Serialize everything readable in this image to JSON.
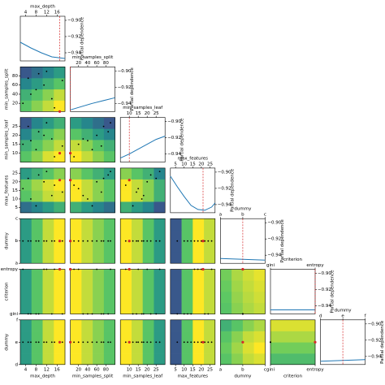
{
  "chart_data": {
    "type": "objective-matrix",
    "y_label": "Partial dependence",
    "ylim": [
      -0.95,
      -0.895
    ],
    "yticks": [
      {
        "value": -0.9,
        "label": "−0.90"
      },
      {
        "value": -0.92,
        "label": "−0.92"
      },
      {
        "value": -0.94,
        "label": "−0.94"
      }
    ],
    "line_color": "#1f77b4",
    "best_color": "#d62728",
    "dimensions": [
      {
        "name": "max_depth",
        "xlim": [
          2,
          19
        ],
        "xticks": [
          4,
          8,
          12,
          16
        ],
        "pd_x": [
          2,
          6,
          10,
          14,
          19
        ],
        "pd": [
          -0.927,
          -0.934,
          -0.94,
          -0.945,
          -0.947
        ]
      },
      {
        "name": "min_samples_split",
        "xlim": [
          2,
          100
        ],
        "xticks": [
          20,
          40,
          60,
          80
        ],
        "pd_x": [
          2,
          50,
          100
        ],
        "pd": [
          -0.948,
          -0.94,
          -0.933
        ]
      },
      {
        "name": "min_samples_leaf",
        "xlim": [
          5,
          30
        ],
        "xticks": [
          10,
          15,
          20,
          25
        ],
        "pd_x": [
          5,
          10,
          15,
          20,
          25,
          30
        ],
        "pd": [
          -0.945,
          -0.94,
          -0.934,
          -0.928,
          -0.922,
          -0.918
        ]
      },
      {
        "name": "max_features",
        "xlim": [
          2,
          28
        ],
        "xticks": [
          5,
          10,
          15,
          20,
          25
        ],
        "pd_x": [
          2,
          6,
          10,
          14,
          18,
          22,
          26,
          28
        ],
        "pd": [
          -0.905,
          -0.918,
          -0.93,
          -0.941,
          -0.946,
          -0.947,
          -0.943,
          -0.938
        ]
      },
      {
        "name": "dummy",
        "categories": [
          "a",
          "b",
          "c"
        ],
        "pd": [
          -0.944,
          -0.945,
          -0.946
        ]
      },
      {
        "name": "criterion",
        "categories": [
          "gini",
          "entropy"
        ],
        "pd": [
          -0.945,
          -0.945
        ]
      },
      {
        "name": "dummy",
        "categories": [
          "d",
          "e",
          "f"
        ],
        "pd": [
          -0.946,
          -0.945,
          -0.944
        ]
      }
    ],
    "best": [
      17,
      2,
      10,
      21,
      "b",
      "entropy",
      "e"
    ],
    "samples": [
      [
        5,
        75,
        25,
        22,
        "b",
        "gini",
        "e"
      ],
      [
        8,
        50,
        12,
        6,
        "b",
        "gini",
        "e"
      ],
      [
        11,
        60,
        20,
        20,
        "b",
        "entropy",
        "e"
      ],
      [
        14,
        30,
        18,
        12,
        "b",
        "gini",
        "e"
      ],
      [
        3,
        20,
        15,
        16,
        "b",
        "entropy",
        "e"
      ],
      [
        9,
        85,
        22,
        24,
        "b",
        "gini",
        "e"
      ],
      [
        15,
        10,
        8,
        18,
        "b",
        "entropy",
        "e"
      ],
      [
        6,
        40,
        17,
        10,
        "b",
        "gini",
        "e"
      ],
      [
        12,
        90,
        27,
        26,
        "b",
        "entropy",
        "e"
      ],
      [
        18,
        70,
        14,
        14,
        "b",
        "gini",
        "e"
      ]
    ],
    "fields": [
      [
        [
          -0.935,
          -0.94,
          -0.945,
          -0.95
        ],
        [
          -0.93,
          -0.935,
          -0.94,
          -0.945
        ],
        [
          -0.92,
          -0.925,
          -0.93,
          -0.935
        ],
        [
          -0.91,
          -0.915,
          -0.92,
          -0.925
        ]
      ],
      [
        [
          -0.935,
          -0.94,
          -0.947,
          -0.95
        ],
        [
          -0.93,
          -0.935,
          -0.94,
          -0.945
        ],
        [
          -0.92,
          -0.93,
          -0.935,
          -0.94
        ],
        [
          -0.91,
          -0.92,
          -0.925,
          -0.93
        ]
      ],
      [
        [
          -0.95,
          -0.945,
          -0.94,
          -0.935
        ],
        [
          -0.945,
          -0.94,
          -0.935,
          -0.93
        ],
        [
          -0.935,
          -0.93,
          -0.925,
          -0.92
        ],
        [
          -0.925,
          -0.92,
          -0.915,
          -0.91
        ]
      ],
      [
        [
          -0.915,
          -0.92,
          -0.925,
          -0.93
        ],
        [
          -0.935,
          -0.94,
          -0.945,
          -0.947
        ],
        [
          -0.937,
          -0.942,
          -0.947,
          -0.95
        ],
        [
          -0.925,
          -0.93,
          -0.935,
          -0.94
        ]
      ],
      [
        [
          -0.93,
          -0.925,
          -0.92,
          -0.915
        ],
        [
          -0.95,
          -0.945,
          -0.94,
          -0.935
        ],
        [
          -0.95,
          -0.945,
          -0.94,
          -0.935
        ],
        [
          -0.94,
          -0.935,
          -0.93,
          -0.925
        ]
      ],
      [
        [
          -0.93,
          -0.925,
          -0.92,
          -0.91
        ],
        [
          -0.95,
          -0.945,
          -0.94,
          -0.93
        ],
        [
          -0.95,
          -0.945,
          -0.94,
          -0.93
        ],
        [
          -0.94,
          -0.935,
          -0.93,
          -0.92
        ]
      ],
      [
        [
          -0.925,
          -0.935,
          -0.945,
          -0.95
        ],
        [
          -0.925,
          -0.935,
          -0.945,
          -0.95
        ],
        [
          -0.925,
          -0.935,
          -0.945,
          -0.95
        ],
        [
          -0.925,
          -0.935,
          -0.945,
          -0.95
        ]
      ],
      [
        [
          -0.95,
          -0.945,
          -0.94,
          -0.935
        ],
        [
          -0.95,
          -0.945,
          -0.94,
          -0.935
        ],
        [
          -0.95,
          -0.945,
          -0.94,
          -0.935
        ],
        [
          -0.95,
          -0.945,
          -0.94,
          -0.935
        ]
      ],
      [
        [
          -0.95,
          -0.945,
          -0.935,
          -0.925
        ],
        [
          -0.95,
          -0.945,
          -0.935,
          -0.925
        ],
        [
          -0.95,
          -0.945,
          -0.935,
          -0.925
        ],
        [
          -0.95,
          -0.945,
          -0.935,
          -0.925
        ]
      ],
      [
        [
          -0.91,
          -0.935,
          -0.95,
          -0.945
        ],
        [
          -0.91,
          -0.935,
          -0.95,
          -0.945
        ],
        [
          -0.91,
          -0.935,
          -0.95,
          -0.945
        ],
        [
          -0.91,
          -0.935,
          -0.95,
          -0.945
        ]
      ],
      [
        [
          -0.925,
          -0.935,
          -0.945,
          -0.95
        ],
        [
          -0.925,
          -0.935,
          -0.945,
          -0.95
        ],
        [
          -0.925,
          -0.935,
          -0.945,
          -0.95
        ],
        [
          -0.925,
          -0.935,
          -0.945,
          -0.95
        ]
      ],
      [
        [
          -0.95,
          -0.945,
          -0.94,
          -0.935
        ],
        [
          -0.95,
          -0.945,
          -0.94,
          -0.935
        ],
        [
          -0.95,
          -0.945,
          -0.94,
          -0.935
        ],
        [
          -0.95,
          -0.945,
          -0.94,
          -0.935
        ]
      ],
      [
        [
          -0.95,
          -0.945,
          -0.935,
          -0.925
        ],
        [
          -0.95,
          -0.945,
          -0.935,
          -0.925
        ],
        [
          -0.95,
          -0.945,
          -0.935,
          -0.925
        ],
        [
          -0.95,
          -0.945,
          -0.935,
          -0.925
        ]
      ],
      [
        [
          -0.91,
          -0.935,
          -0.95,
          -0.945
        ],
        [
          -0.91,
          -0.935,
          -0.95,
          -0.945
        ],
        [
          -0.91,
          -0.935,
          -0.95,
          -0.945
        ],
        [
          -0.91,
          -0.935,
          -0.95,
          -0.945
        ]
      ],
      [
        [
          -0.935,
          -0.94,
          -0.943,
          -0.945
        ],
        [
          -0.936,
          -0.941,
          -0.944,
          -0.946
        ],
        [
          -0.937,
          -0.942,
          -0.945,
          -0.947
        ],
        [
          -0.938,
          -0.943,
          -0.946,
          -0.948
        ]
      ],
      [
        [
          -0.925,
          -0.935,
          -0.945,
          -0.95
        ],
        [
          -0.925,
          -0.935,
          -0.945,
          -0.95
        ],
        [
          -0.925,
          -0.935,
          -0.945,
          -0.95
        ],
        [
          -0.925,
          -0.935,
          -0.945,
          -0.95
        ]
      ],
      [
        [
          -0.95,
          -0.945,
          -0.94,
          -0.935
        ],
        [
          -0.95,
          -0.945,
          -0.94,
          -0.935
        ],
        [
          -0.95,
          -0.945,
          -0.94,
          -0.935
        ],
        [
          -0.95,
          -0.945,
          -0.94,
          -0.935
        ]
      ],
      [
        [
          -0.95,
          -0.945,
          -0.935,
          -0.925
        ],
        [
          -0.95,
          -0.945,
          -0.935,
          -0.925
        ],
        [
          -0.95,
          -0.945,
          -0.935,
          -0.925
        ],
        [
          -0.95,
          -0.945,
          -0.935,
          -0.925
        ]
      ],
      [
        [
          -0.91,
          -0.935,
          -0.95,
          -0.945
        ],
        [
          -0.91,
          -0.935,
          -0.95,
          -0.945
        ],
        [
          -0.91,
          -0.935,
          -0.95,
          -0.945
        ],
        [
          -0.91,
          -0.935,
          -0.95,
          -0.945
        ]
      ],
      [
        [
          -0.935,
          -0.94,
          -0.945,
          -0.947
        ],
        [
          -0.937,
          -0.942,
          -0.947,
          -0.95
        ],
        [
          -0.935,
          -0.94,
          -0.945,
          -0.947
        ],
        [
          -0.93,
          -0.935,
          -0.94,
          -0.943
        ]
      ],
      [
        [
          -0.933,
          -0.933,
          -0.933,
          -0.933
        ],
        [
          -0.938,
          -0.938,
          -0.938,
          -0.938
        ],
        [
          -0.943,
          -0.943,
          -0.943,
          -0.943
        ],
        [
          -0.947,
          -0.947,
          -0.947,
          -0.947
        ]
      ]
    ]
  }
}
